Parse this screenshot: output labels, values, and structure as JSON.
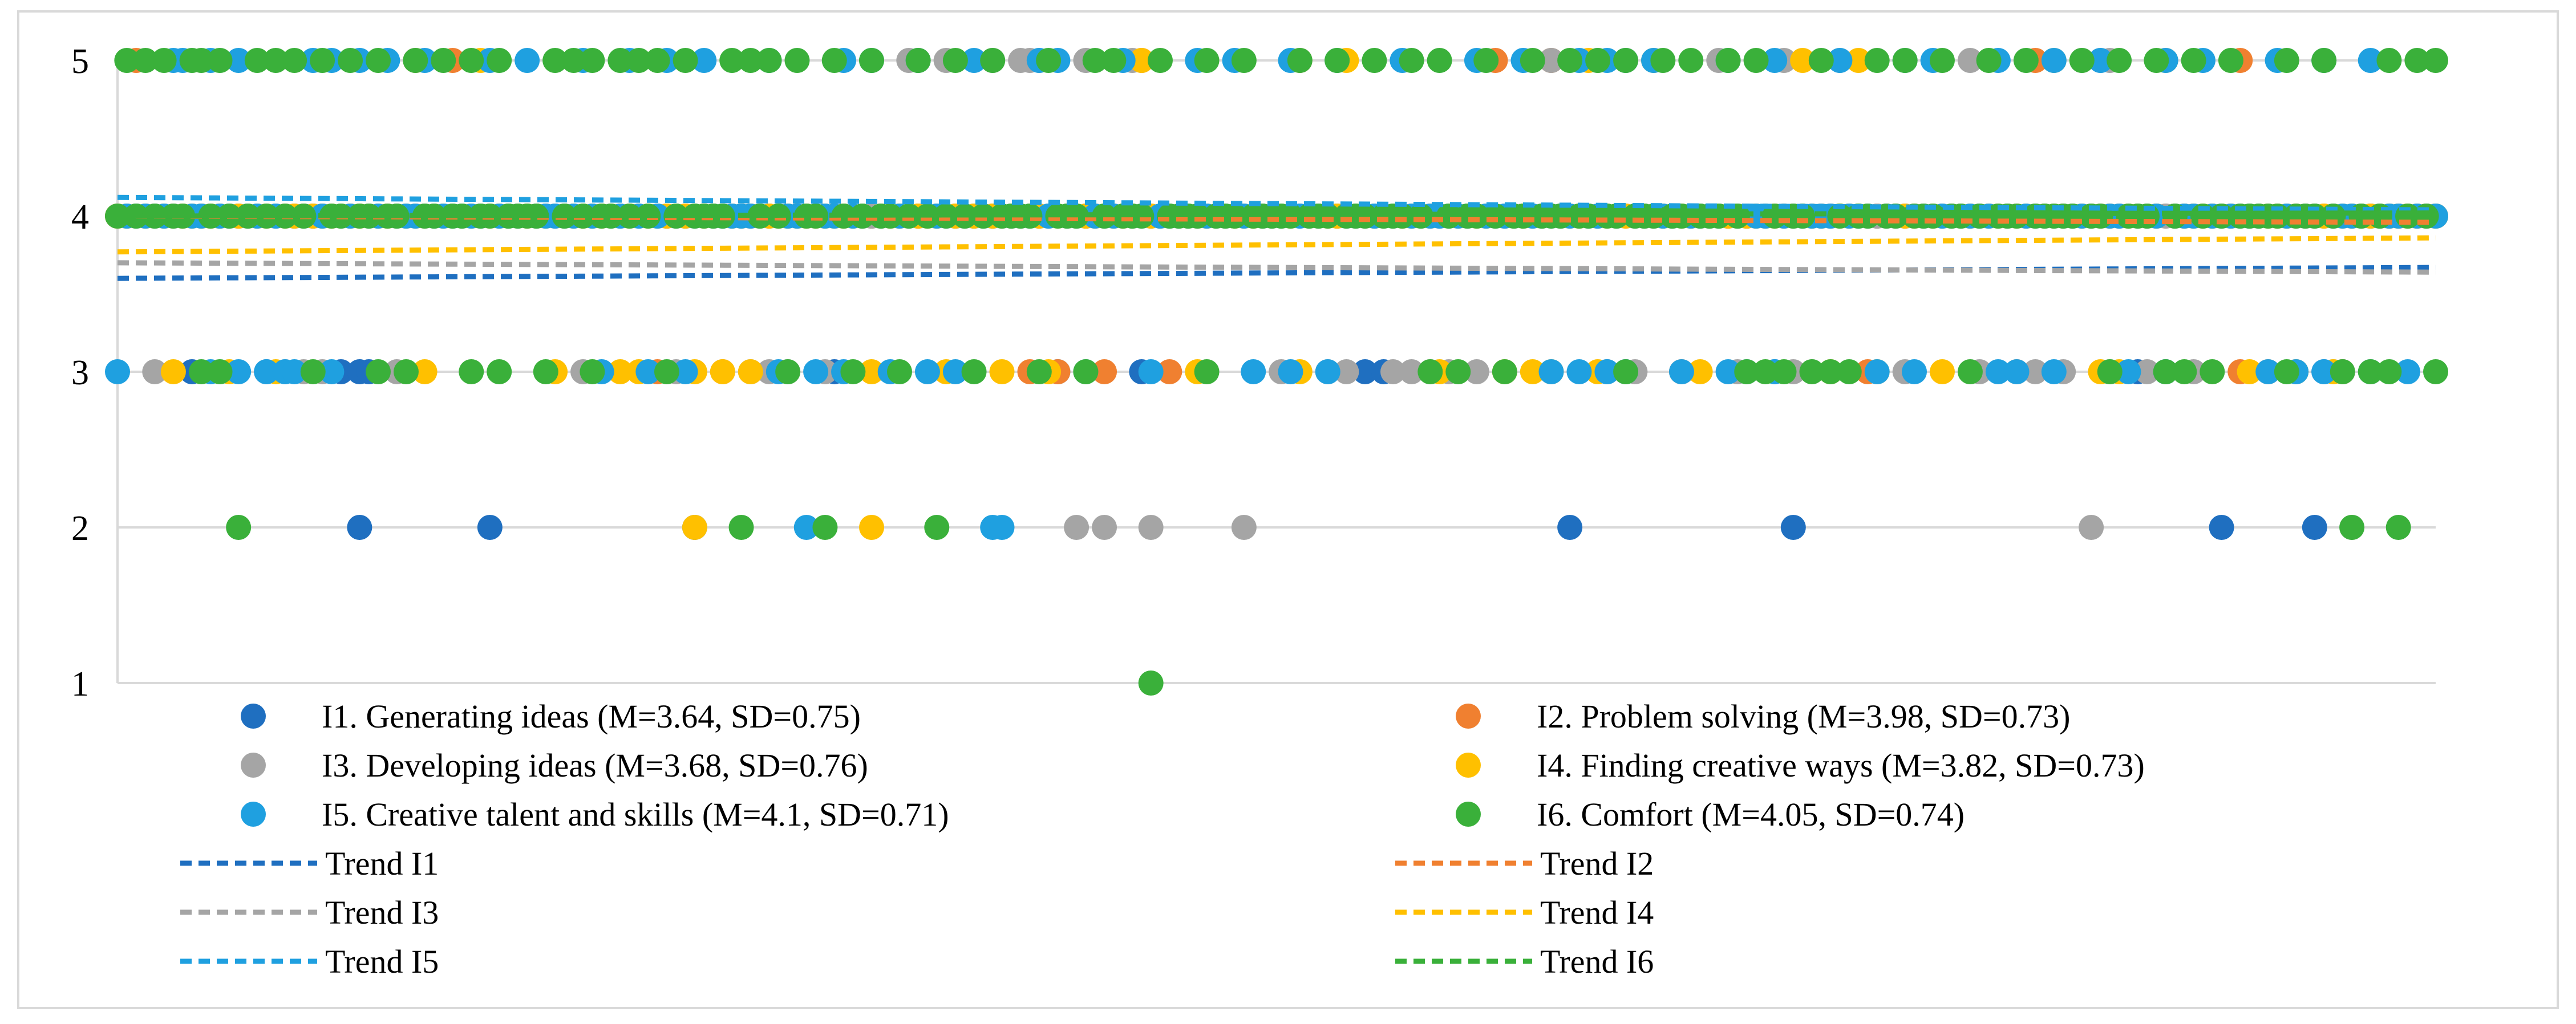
{
  "chart_data": {
    "type": "scatter",
    "title": "",
    "xlabel": "",
    "ylabel": "",
    "x_range": [
      1,
      250
    ],
    "ylim": [
      1,
      5
    ],
    "y_ticks": [
      "1",
      "2",
      "3",
      "4",
      "5"
    ],
    "grid": {
      "horizontal": true,
      "vertical": false
    },
    "legend_position": "bottom",
    "series": [
      {
        "name": "I1. Generating ideas (M=3.64, SD=0.75)",
        "key": "I1",
        "color": "#1f6fc0",
        "two_x": [
          27,
          41,
          63,
          157,
          181,
          227,
          237
        ],
        "three_x": [
          9,
          17,
          25,
          27,
          28,
          78,
          102,
          111,
          135,
          137,
          161,
          163,
          179,
          218,
          221,
          238,
          240
        ],
        "five_x": [],
        "trend": {
          "name": "Trend I1",
          "start": 3.6,
          "end": 3.67
        }
      },
      {
        "name": "I2. Problem solving (M=3.98, SD=0.73)",
        "key": "I2",
        "color": "#f08030",
        "two_x": [],
        "three_x": [
          59,
          66,
          99,
          102,
          107,
          114,
          169,
          189,
          205,
          229,
          232,
          240
        ],
        "five_x": [
          3,
          33,
          37,
          111,
          128,
          149,
          155,
          207,
          229
        ],
        "trend": {
          "name": "Trend I2",
          "start": 4.0,
          "end": 3.96
        }
      },
      {
        "name": "I3. Developing ideas (M=3.68, SD=0.76)",
        "key": "I3",
        "color": "#a5a5a5",
        "two_x": [
          104,
          107,
          112,
          122,
          213,
          241
        ],
        "three_x": [
          5,
          19,
          21,
          23,
          31,
          51,
          61,
          69,
          71,
          73,
          77,
          126,
          131,
          133,
          138,
          140,
          142,
          144,
          147,
          164,
          175,
          181,
          183,
          193,
          201,
          207,
          210,
          215,
          219,
          224,
          235,
          239
        ],
        "five_x": [
          86,
          87,
          90,
          95,
          98,
          99,
          100,
          105,
          110,
          155,
          160,
          163,
          173,
          180,
          186,
          200,
          212,
          214,
          215
        ],
        "trend": {
          "name": "Trend I3",
          "start": 3.7,
          "end": 3.64
        }
      },
      {
        "name": "I4. Finding creative ways (M=3.82, SD=0.73)",
        "key": "I4",
        "color": "#ffc000",
        "two_x": [
          63,
          82
        ],
        "three_x": [
          7,
          13,
          18,
          34,
          48,
          55,
          57,
          63,
          66,
          69,
          82,
          90,
          96,
          101,
          117,
          128,
          143,
          150,
          153,
          155,
          160,
          171,
          185,
          190,
          197,
          214,
          216,
          230,
          235,
          239
        ],
        "five_x": [
          40,
          111,
          133,
          159,
          166,
          182,
          188,
          209,
          221
        ],
        "trend": {
          "name": "Trend I4",
          "start": 3.77,
          "end": 3.86
        }
      },
      {
        "name": "I5. Creative talent and skills (M=4.1, SD=0.71)",
        "key": "I5",
        "color": "#1fa0e0",
        "two_x": [
          75,
          95,
          96
        ],
        "three_x": [
          1,
          11,
          14,
          17,
          19,
          20,
          24,
          53,
          58,
          62,
          72,
          76,
          79,
          84,
          88,
          91,
          105,
          112,
          123,
          127,
          131,
          155,
          158,
          161,
          163,
          169,
          174,
          176,
          179,
          190,
          194,
          203,
          205,
          209,
          217,
          221,
          232,
          235,
          238,
          243,
          247
        ],
        "five_x": [
          7,
          8,
          11,
          14,
          22,
          24,
          27,
          30,
          34,
          41,
          45,
          51,
          56,
          60,
          64,
          71,
          79,
          82,
          87,
          93,
          100,
          102,
          109,
          117,
          121,
          127,
          132,
          139,
          147,
          152,
          158,
          161,
          163,
          166,
          174,
          179,
          186,
          193,
          196,
          203,
          209,
          214,
          221,
          225,
          233,
          238,
          243
        ],
        "trend": {
          "name": "Trend I5",
          "start": 4.12,
          "end": 4.04
        }
      },
      {
        "name": "I6. Comfort (M=4.05, SD=0.74)",
        "key": "I6",
        "color": "#3ab03a",
        "two_x": [
          14,
          68,
          77,
          89,
          241,
          246
        ],
        "one_x": [
          112
        ],
        "three_x": [
          10,
          12,
          22,
          29,
          32,
          39,
          42,
          47,
          52,
          60,
          73,
          80,
          85,
          93,
          100,
          105,
          118,
          142,
          145,
          150,
          163,
          176,
          178,
          180,
          183,
          185,
          187,
          200,
          215,
          221,
          223,
          226,
          234,
          240,
          243,
          245,
          250
        ],
        "five_x": [
          2,
          4,
          6,
          9,
          10,
          12,
          16,
          18,
          20,
          23,
          26,
          29,
          33,
          36,
          39,
          42,
          48,
          50,
          52,
          55,
          57,
          59,
          62,
          67,
          69,
          71,
          74,
          78,
          82,
          87,
          91,
          95,
          101,
          106,
          108,
          113,
          118,
          122,
          128,
          132,
          136,
          140,
          143,
          148,
          153,
          157,
          160,
          163,
          167,
          170,
          174,
          177,
          184,
          190,
          193,
          197,
          202,
          206,
          212,
          216,
          220,
          224,
          228,
          234,
          238,
          245,
          248,
          250
        ],
        "trend": {
          "name": "Trend I6",
          "start": 4.0,
          "end": 4.02
        }
      }
    ]
  }
}
